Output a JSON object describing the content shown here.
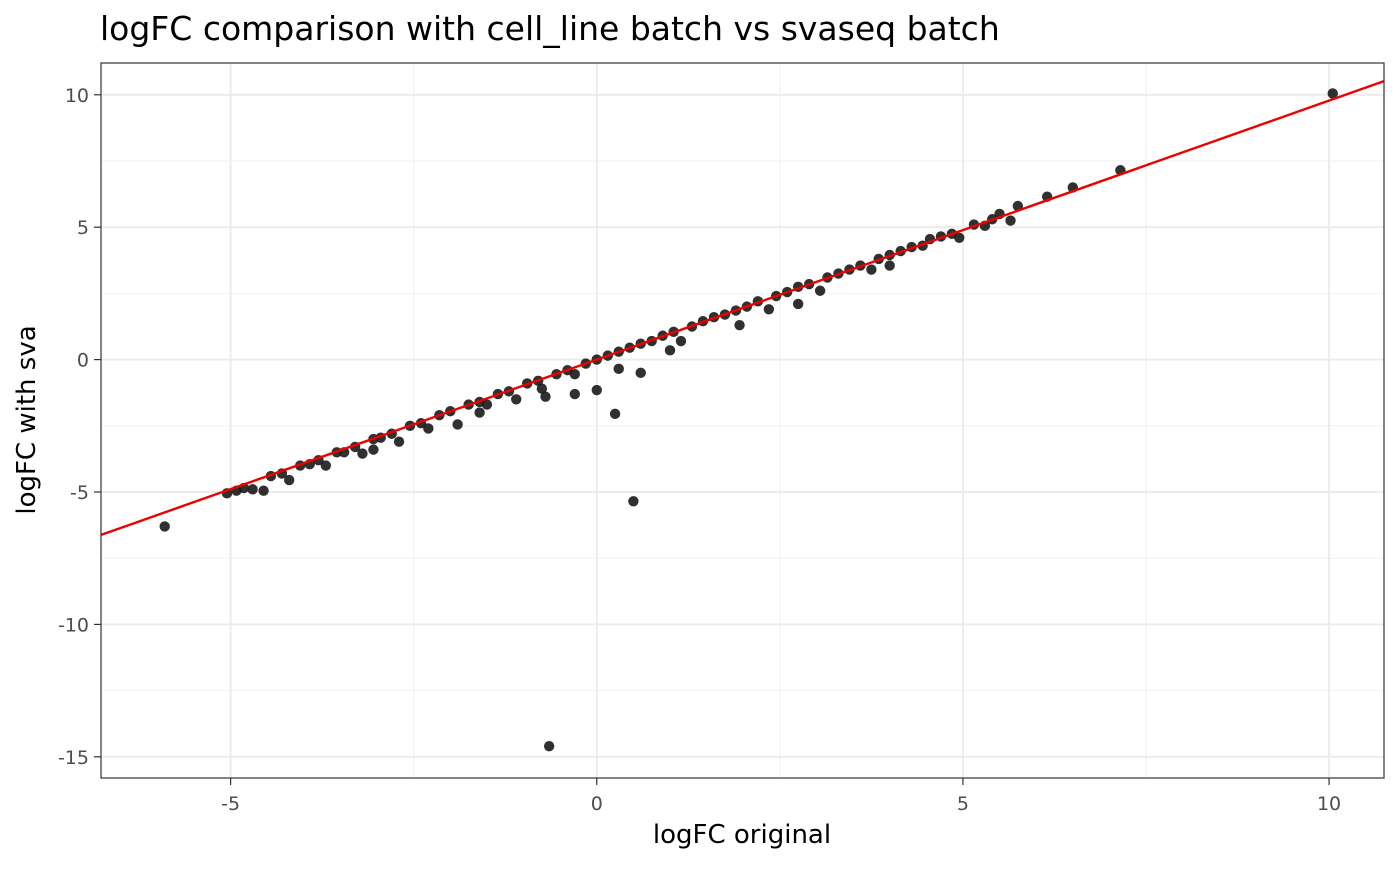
{
  "chart_data": {
    "type": "scatter",
    "title": "logFC comparison with cell_line batch vs svaseq batch",
    "xlabel": "logFC original",
    "ylabel": "logFC with sva",
    "xlim": [
      -6.77,
      10.75
    ],
    "ylim": [
      -15.8,
      11.2
    ],
    "x_ticks": [
      -5,
      0,
      5,
      10
    ],
    "y_ticks": [
      -15,
      -10,
      -5,
      0,
      5,
      10
    ],
    "x_tick_labels": [
      "-5",
      "0",
      "5",
      "10"
    ],
    "y_tick_labels": [
      "-15",
      "-10",
      "-5",
      "0",
      "5",
      "10"
    ],
    "grid": true,
    "point_color": "#1a1a1a",
    "line_color": "#ee0000",
    "fit_line": {
      "slope": 0.978,
      "intercept": 0.0
    },
    "series": [
      {
        "points": [
          [
            -5.9,
            -6.3
          ],
          [
            -5.05,
            -5.05
          ],
          [
            -4.92,
            -4.95
          ],
          [
            -4.82,
            -4.85
          ],
          [
            -4.7,
            -4.9
          ],
          [
            -4.55,
            -4.95
          ],
          [
            -4.45,
            -4.4
          ],
          [
            -4.3,
            -4.3
          ],
          [
            -4.2,
            -4.55
          ],
          [
            -4.05,
            -4.0
          ],
          [
            -3.92,
            -3.95
          ],
          [
            -3.8,
            -3.8
          ],
          [
            -3.7,
            -4.0
          ],
          [
            -3.55,
            -3.5
          ],
          [
            -3.45,
            -3.5
          ],
          [
            -3.3,
            -3.3
          ],
          [
            -3.2,
            -3.55
          ],
          [
            -3.05,
            -3.0
          ],
          [
            -2.95,
            -2.95
          ],
          [
            -2.8,
            -2.8
          ],
          [
            -2.7,
            -3.1
          ],
          [
            -2.55,
            -2.5
          ],
          [
            -2.4,
            -2.4
          ],
          [
            -2.3,
            -2.6
          ],
          [
            -2.15,
            -2.1
          ],
          [
            -2.0,
            -1.95
          ],
          [
            -1.9,
            -2.45
          ],
          [
            -1.75,
            -1.7
          ],
          [
            -1.6,
            -1.6
          ],
          [
            -1.5,
            -1.7
          ],
          [
            -1.35,
            -1.3
          ],
          [
            -1.2,
            -1.2
          ],
          [
            -1.1,
            -1.5
          ],
          [
            -0.95,
            -0.9
          ],
          [
            -0.8,
            -0.8
          ],
          [
            -0.7,
            -1.4
          ],
          [
            -0.55,
            -0.55
          ],
          [
            -0.4,
            -0.4
          ],
          [
            -0.3,
            -0.55
          ],
          [
            -0.15,
            -0.15
          ],
          [
            0.0,
            0.0
          ],
          [
            0.0,
            -1.15
          ],
          [
            0.15,
            0.15
          ],
          [
            0.3,
            0.3
          ],
          [
            0.3,
            -0.35
          ],
          [
            0.45,
            0.45
          ],
          [
            0.6,
            0.6
          ],
          [
            0.6,
            -0.5
          ],
          [
            0.75,
            0.7
          ],
          [
            0.9,
            0.9
          ],
          [
            1.05,
            1.05
          ],
          [
            1.15,
            0.7
          ],
          [
            1.3,
            1.25
          ],
          [
            1.45,
            1.45
          ],
          [
            1.6,
            1.6
          ],
          [
            1.75,
            1.7
          ],
          [
            1.9,
            1.85
          ],
          [
            1.95,
            1.3
          ],
          [
            2.05,
            2.0
          ],
          [
            2.2,
            2.2
          ],
          [
            2.35,
            1.9
          ],
          [
            2.45,
            2.4
          ],
          [
            2.6,
            2.55
          ],
          [
            2.75,
            2.75
          ],
          [
            2.9,
            2.85
          ],
          [
            3.05,
            2.6
          ],
          [
            3.15,
            3.1
          ],
          [
            3.3,
            3.25
          ],
          [
            3.45,
            3.4
          ],
          [
            3.6,
            3.55
          ],
          [
            3.75,
            3.4
          ],
          [
            3.85,
            3.8
          ],
          [
            4.0,
            3.95
          ],
          [
            4.15,
            4.1
          ],
          [
            4.3,
            4.25
          ],
          [
            4.45,
            4.3
          ],
          [
            4.55,
            4.55
          ],
          [
            4.7,
            4.65
          ],
          [
            4.85,
            4.75
          ],
          [
            4.95,
            4.6
          ],
          [
            5.15,
            5.1
          ],
          [
            5.3,
            5.05
          ],
          [
            5.4,
            5.3
          ],
          [
            5.5,
            5.5
          ],
          [
            5.65,
            5.25
          ],
          [
            5.75,
            5.8
          ],
          [
            6.15,
            6.15
          ],
          [
            6.5,
            6.5
          ],
          [
            7.15,
            7.15
          ],
          [
            10.05,
            10.05
          ],
          [
            -0.65,
            -14.6
          ],
          [
            0.5,
            -5.35
          ],
          [
            0.25,
            -2.05
          ],
          [
            -0.3,
            -1.3
          ],
          [
            -0.75,
            -1.1
          ],
          [
            1.0,
            0.35
          ],
          [
            -1.6,
            -2.0
          ],
          [
            2.75,
            2.1
          ],
          [
            4.0,
            3.55
          ],
          [
            -3.05,
            -3.4
          ]
        ]
      }
    ]
  }
}
